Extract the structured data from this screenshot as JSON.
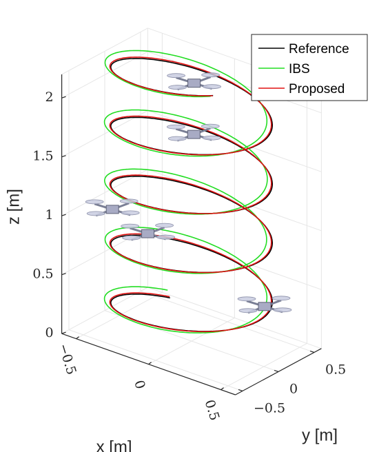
{
  "chart_data": {
    "type": "line",
    "dimensions": "3d",
    "xlabel": "x [m]",
    "ylabel": "y [m]",
    "zlabel": "z [m]",
    "xlim": [
      -0.6,
      0.6
    ],
    "ylim": [
      -0.6,
      0.6
    ],
    "zlim": [
      0,
      2.2
    ],
    "x_ticks": [
      "−0.5",
      "0",
      "0.5"
    ],
    "y_ticks": [
      "−0.5",
      "0",
      "0.5"
    ],
    "z_ticks": [
      "0",
      "0.5",
      "1",
      "1.5",
      "2"
    ],
    "x_tick_values": [
      -0.5,
      0,
      0.5
    ],
    "y_tick_values": [
      -0.5,
      0,
      0.5
    ],
    "z_tick_values": [
      0,
      0.5,
      1,
      1.5,
      2
    ],
    "grid": true,
    "legend_position": "top-right",
    "helix": {
      "radius": 0.5,
      "z_start": 0.1,
      "z_end": 2.35,
      "turns": 4.5
    },
    "series": [
      {
        "name": "Reference",
        "color": "#000000",
        "radius": 0.5,
        "phase": 0.0,
        "amp_dev": 0.0
      },
      {
        "name": "IBS",
        "color": "#22dd22",
        "radius": 0.5,
        "phase": 0.05,
        "amp_dev": 0.06
      },
      {
        "name": "Proposed",
        "color": "#e01010",
        "radius": 0.5,
        "phase": 0.01,
        "amp_dev": 0.01
      }
    ],
    "drone_markers_z": [
      0.3,
      0.95,
      1.05,
      1.95,
      2.0
    ]
  }
}
